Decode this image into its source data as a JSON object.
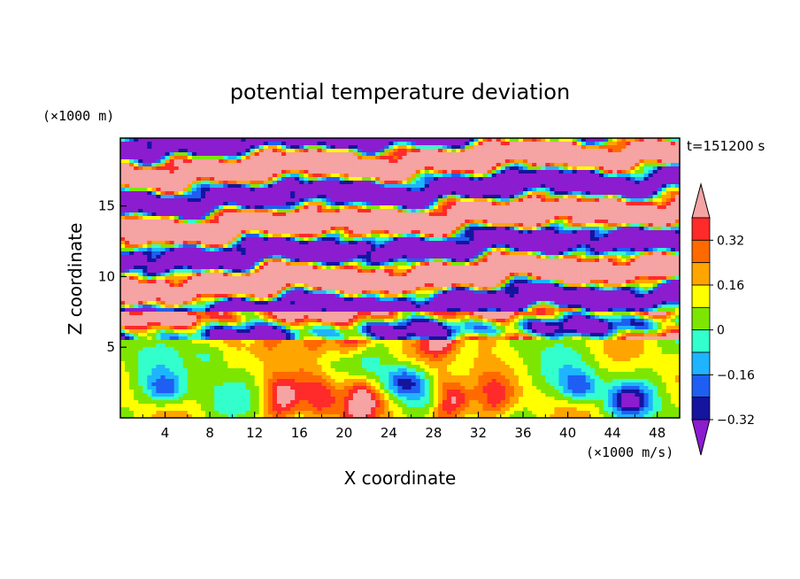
{
  "chart_data": {
    "type": "heatmap",
    "title": "potential temperature deviation",
    "xlabel": "X coordinate",
    "ylabel": "Z coordinate",
    "x_unit": "(×1000 m/s)",
    "y_unit": "(×1000 m)",
    "time_label": "t=151200 s",
    "x_ticks": [
      4,
      8,
      12,
      16,
      20,
      24,
      28,
      32,
      36,
      40,
      44,
      48
    ],
    "y_ticks": [
      5,
      10,
      15
    ],
    "xlim": [
      0,
      50
    ],
    "ylim": [
      0,
      19.8
    ],
    "colorbar": {
      "levels": [
        -0.4,
        -0.32,
        -0.24,
        -0.16,
        -0.08,
        0,
        0.08,
        0.16,
        0.24,
        0.32,
        0.4
      ],
      "labels": [
        "0.32",
        "0.16",
        "0",
        "−0.16",
        "−0.32"
      ],
      "label_values": [
        0.32,
        0.16,
        0,
        -0.16,
        -0.32
      ],
      "colors": [
        "#8c1ccf",
        "#14149f",
        "#1f5ef2",
        "#1fb4ff",
        "#33ffcc",
        "#7de600",
        "#ffff00",
        "#ffa500",
        "#ff6a00",
        "#ff2a2a",
        "#f5a3a3"
      ],
      "extend": "both"
    }
  }
}
